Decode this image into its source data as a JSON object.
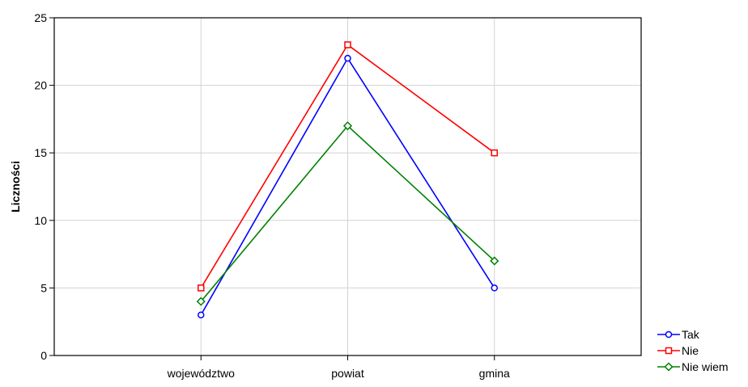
{
  "chart_data": {
    "type": "line",
    "title": "",
    "xlabel": "",
    "ylabel": "Liczności",
    "categories": [
      "województwo",
      "powiat",
      "gmina"
    ],
    "ylim": [
      0,
      25
    ],
    "yticks": [
      0,
      5,
      10,
      15,
      20,
      25
    ],
    "grid": true,
    "legend_position": "bottom-right",
    "series": [
      {
        "name": "Tak",
        "values": [
          3,
          22,
          5
        ],
        "color": "#0000ff",
        "marker": "circle"
      },
      {
        "name": "Nie",
        "values": [
          5,
          23,
          15
        ],
        "color": "#ff0000",
        "marker": "square"
      },
      {
        "name": "Nie wiem",
        "values": [
          4,
          17,
          7
        ],
        "color": "#008000",
        "marker": "diamond"
      }
    ]
  }
}
